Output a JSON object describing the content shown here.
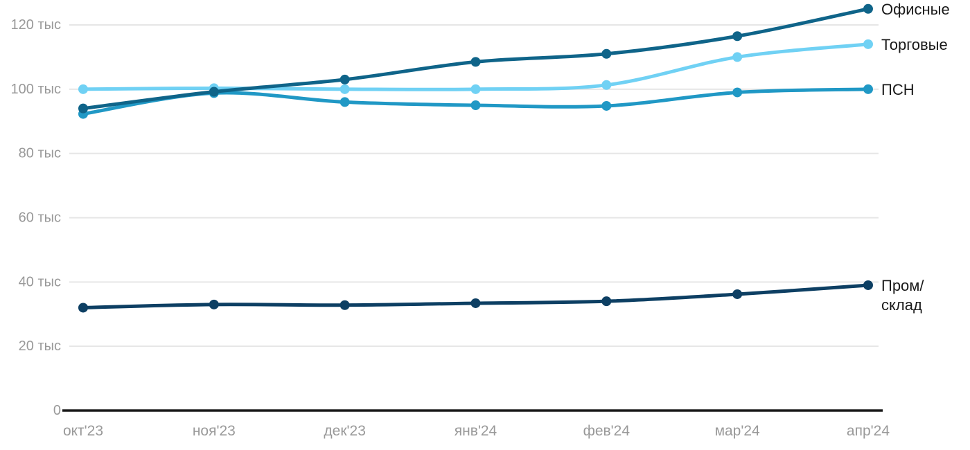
{
  "chart_data": {
    "type": "line",
    "title": "",
    "unit_suffix": "тыс",
    "categories": [
      "окт'23",
      "ноя'23",
      "дек'23",
      "янв'24",
      "фев'24",
      "мар'24",
      "апр'24"
    ],
    "series": [
      {
        "name": "Торговые",
        "color": "#70d1f4",
        "values": [
          100,
          100.3,
          100,
          100,
          101.3,
          110,
          114
        ],
        "label_lines": [
          "Торговые"
        ]
      },
      {
        "name": "ПСН",
        "color": "#2098c5",
        "values": [
          92.3,
          98.8,
          96,
          95,
          94.8,
          99,
          100
        ],
        "label_lines": [
          "ПСН"
        ]
      },
      {
        "name": "Офисные",
        "color": "#0f6489",
        "values": [
          94,
          99.2,
          103,
          108.5,
          111,
          116.5,
          125
        ],
        "label_lines": [
          "Офисные"
        ]
      },
      {
        "name": "Пром/склад",
        "color": "#0d3f63",
        "values": [
          32,
          33,
          32.8,
          33.4,
          34,
          36.2,
          39
        ],
        "label_lines": [
          "Пром/",
          "склад"
        ]
      }
    ],
    "yticks": [
      {
        "value": 0,
        "label": "0"
      },
      {
        "value": 20,
        "label": "20 тыс"
      },
      {
        "value": 40,
        "label": "40 тыс"
      },
      {
        "value": 60,
        "label": "60 тыс"
      },
      {
        "value": 80,
        "label": "80 тыс"
      },
      {
        "value": 100,
        "label": "100 тыс"
      },
      {
        "value": 120,
        "label": "120 тыс"
      }
    ],
    "ylim": [
      0,
      130
    ],
    "grid": true,
    "legend_position": "right-of-line-ends",
    "colors": {
      "axis": "#1a1a1a",
      "gridline": "#e6e6e6",
      "tick_label": "#999999",
      "legend_text": "#1a1a1a",
      "background": "#ffffff"
    }
  }
}
